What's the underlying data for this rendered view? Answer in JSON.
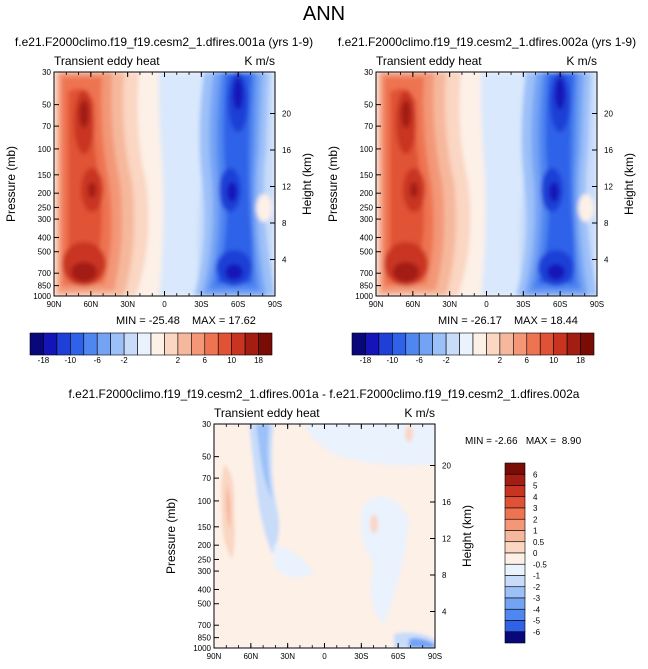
{
  "page_title": "ANN",
  "chart_data": [
    {
      "type": "heatmap",
      "title": "f.e21.F2000climo.f19_f19.cesm2_1.dfires.001a (yrs 1-9)",
      "left_string": "Transient eddy heat",
      "right_string": "K m/s",
      "ylabel": "Pressure (mb)",
      "ylabel_right": "Height (km)",
      "x_ticks": [
        "90N",
        "60N",
        "30N",
        "0",
        "30S",
        "60S",
        "90S"
      ],
      "y_ticks": [
        "30",
        "50",
        "70",
        "100",
        "150",
        "200",
        "250",
        "300",
        "400",
        "500",
        "700",
        "850",
        "1000"
      ],
      "y_ticks_right": [
        "20",
        "16",
        "12",
        "8",
        "4"
      ],
      "min_label": "MIN = -25.48",
      "max_label": "MAX = 17.62",
      "min": -25.48,
      "max": 17.62
    },
    {
      "type": "heatmap",
      "title": "f.e21.F2000climo.f19_f19.cesm2_1.dfires.002a (yrs 1-9)",
      "left_string": "Transient eddy heat",
      "right_string": "K m/s",
      "ylabel": "Pressure (mb)",
      "ylabel_right": "Height (km)",
      "x_ticks": [
        "90N",
        "60N",
        "30N",
        "0",
        "30S",
        "60S",
        "90S"
      ],
      "y_ticks": [
        "30",
        "50",
        "70",
        "100",
        "150",
        "200",
        "250",
        "300",
        "400",
        "500",
        "700",
        "850",
        "1000"
      ],
      "y_ticks_right": [
        "20",
        "16",
        "12",
        "8",
        "4"
      ],
      "min_label": "MIN = -26.17",
      "max_label": "MAX = 18.44",
      "min": -26.17,
      "max": 18.44
    },
    {
      "type": "heatmap",
      "title": "f.e21.F2000climo.f19_f19.cesm2_1.dfires.001a - f.e21.F2000climo.f19_f19.cesm2_1.dfires.002a",
      "left_string": "Transient eddy heat",
      "right_string": "K m/s",
      "ylabel": "Pressure (mb)",
      "ylabel_right": "Height (km)",
      "x_ticks": [
        "90N",
        "60N",
        "30N",
        "0",
        "30S",
        "60S",
        "90S"
      ],
      "y_ticks": [
        "30",
        "50",
        "70",
        "100",
        "150",
        "200",
        "250",
        "300",
        "400",
        "500",
        "700",
        "850",
        "1000"
      ],
      "y_ticks_right": [
        "20",
        "16",
        "12",
        "8",
        "4"
      ],
      "minmax_label": "MIN = -2.66   MAX =  8.90",
      "min": -2.66,
      "max": 8.9
    }
  ],
  "colorbar_main": {
    "labels": [
      "-18",
      "-10",
      "-6",
      "-2",
      "2",
      "6",
      "10",
      "18"
    ],
    "colors": [
      "#08087a",
      "#1414b8",
      "#1f3fd6",
      "#2f62e8",
      "#4f86f0",
      "#74a3f4",
      "#9cc0f8",
      "#c8dcfa",
      "#eaf2fd",
      "#fdf0e7",
      "#fad6c3",
      "#f6b89c",
      "#f39777",
      "#ee7351",
      "#e05236",
      "#c93420",
      "#a31d12",
      "#7a0c06"
    ]
  },
  "colorbar_diff": {
    "labels": [
      "6",
      "5",
      "4",
      "3",
      "2",
      "1",
      "0.5",
      "0",
      "-0.5",
      "-1",
      "-2",
      "-3",
      "-4",
      "-5",
      "-6"
    ],
    "colors": [
      "#7a0c06",
      "#a31d12",
      "#c93420",
      "#e05236",
      "#ee7351",
      "#f39777",
      "#f6b89c",
      "#fad6c3",
      "#fdf0e7",
      "#eaf2fd",
      "#c8dcfa",
      "#9cc0f8",
      "#74a3f4",
      "#4f86f0",
      "#2f62e8",
      "#08087a"
    ]
  }
}
